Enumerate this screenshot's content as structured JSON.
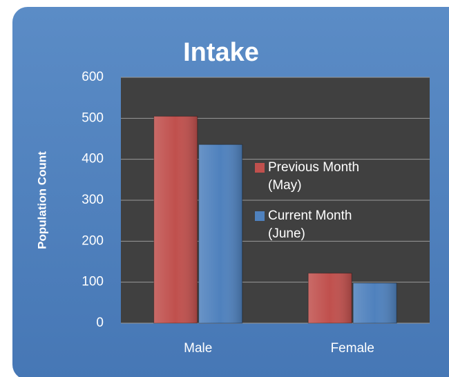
{
  "chart_data": {
    "type": "bar",
    "title": "Intake",
    "y_label": "Population Count",
    "categories": [
      "Male",
      "Female"
    ],
    "series": [
      {
        "name": "Previous Month (May)",
        "color": "#c0504d",
        "values": [
          505,
          122
        ]
      },
      {
        "name": "Current Month (June)",
        "color": "#4f81bd",
        "values": [
          436,
          98
        ]
      }
    ],
    "ylim": [
      0,
      600
    ],
    "yticks": [
      0,
      100,
      200,
      300,
      400,
      500,
      600
    ],
    "grid": true,
    "legend": "right"
  }
}
